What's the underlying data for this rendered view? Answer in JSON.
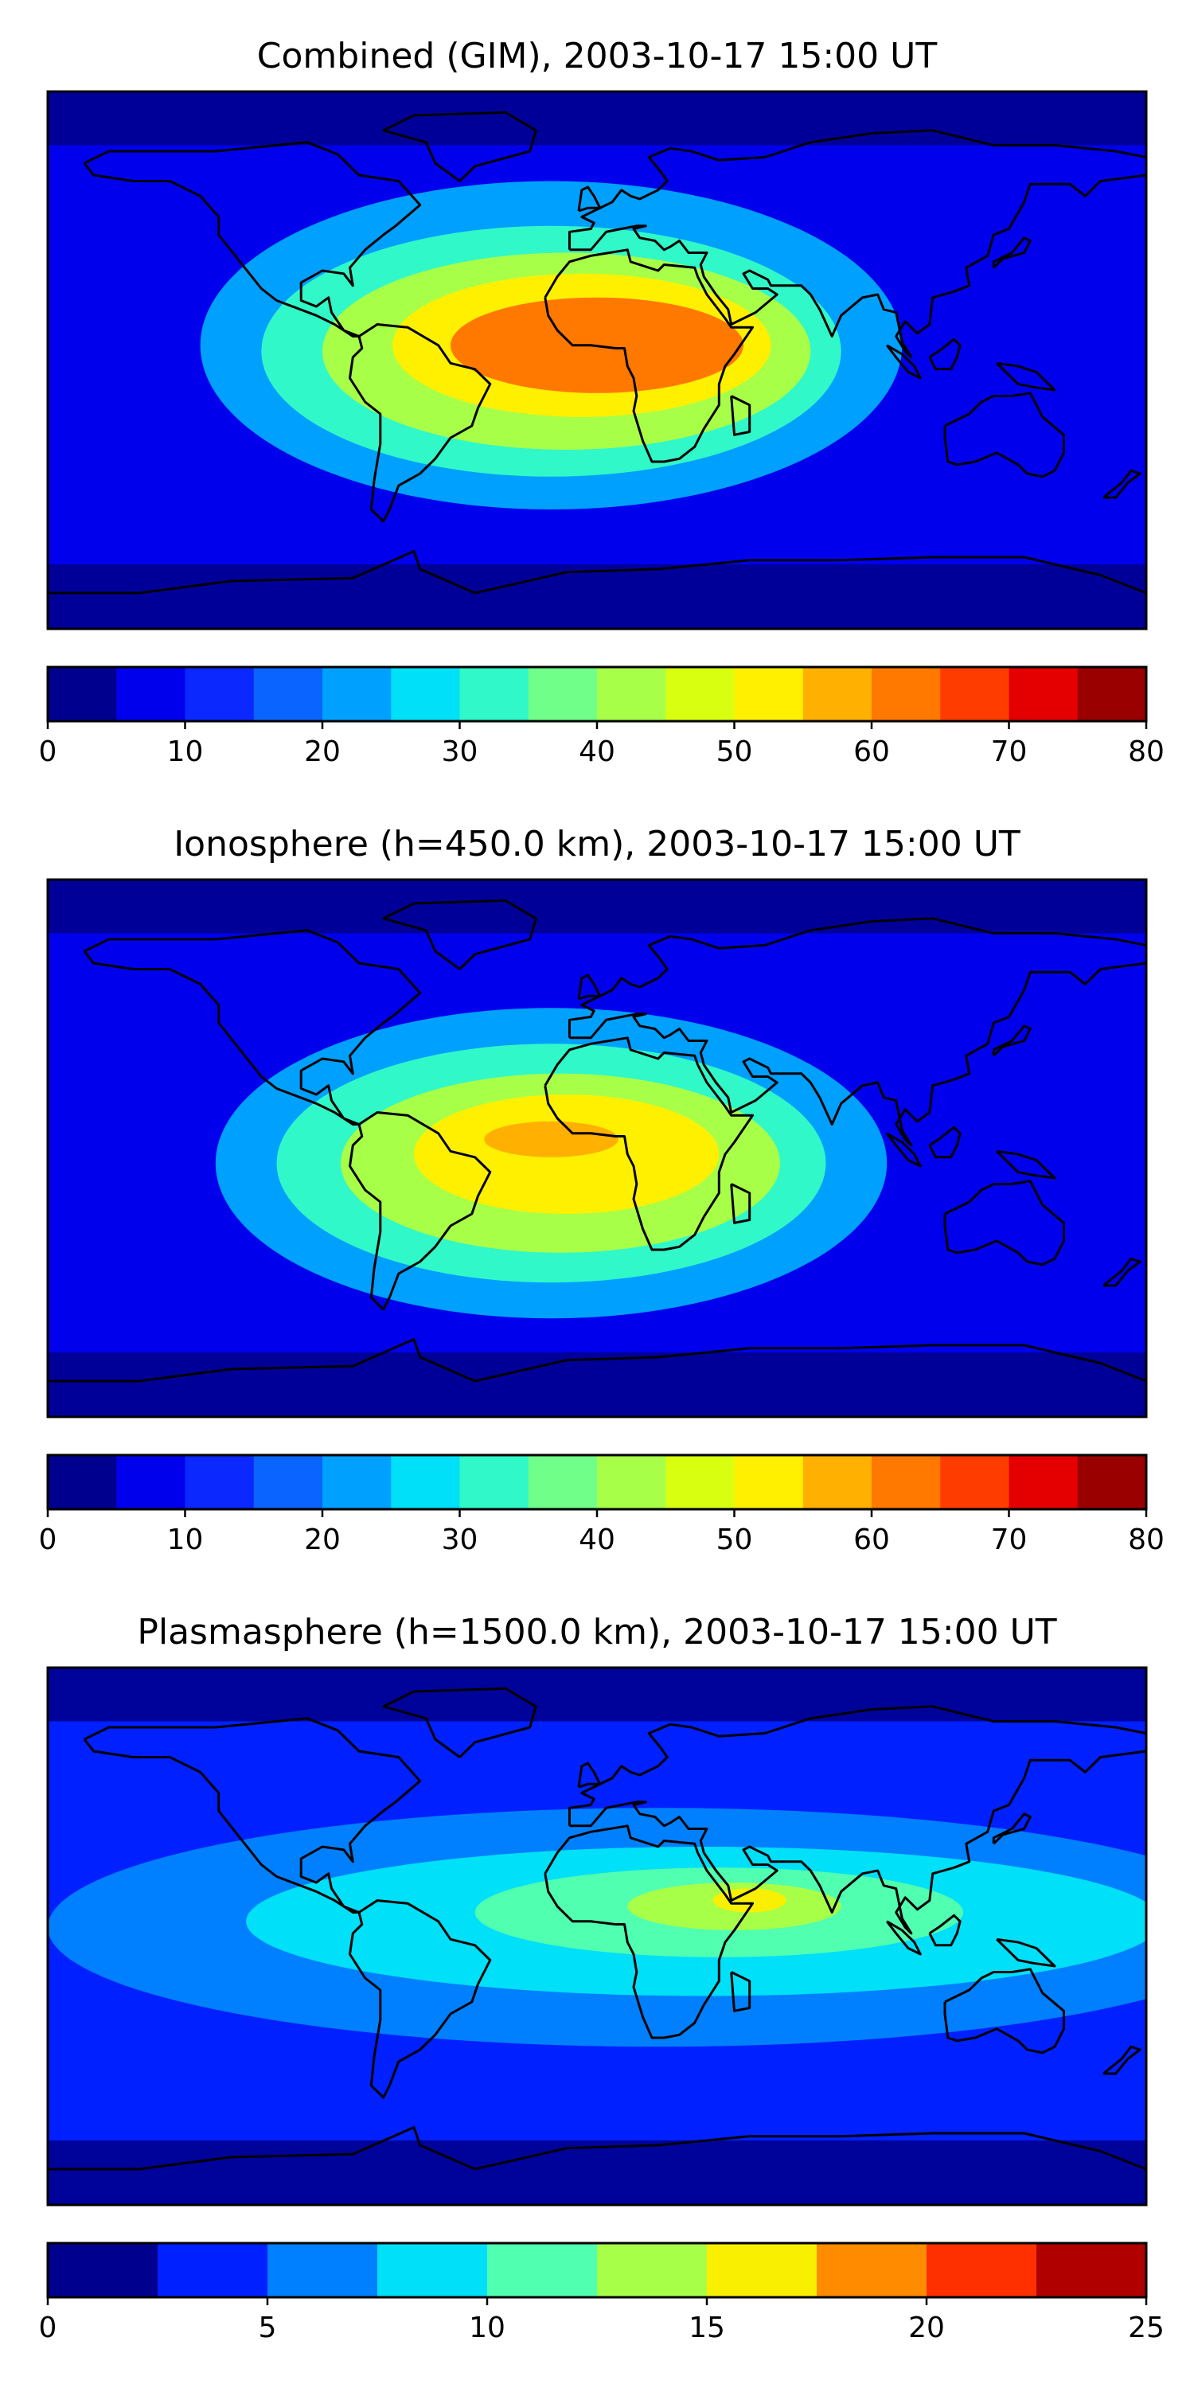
{
  "chart_data": [
    {
      "type": "heatmap",
      "title": "Combined (GIM), 2003-10-17 15:00 UT",
      "colorbar": {
        "ticks": [
          "0",
          "10",
          "20",
          "30",
          "40",
          "50",
          "60",
          "70",
          "80"
        ],
        "min": 0,
        "max": 80,
        "step": 5
      },
      "blobs": [
        {
          "lon": -15,
          "lat": 5,
          "rx": 115,
          "ry": 55,
          "value": 20
        },
        {
          "lon": -15,
          "lat": 3,
          "rx": 95,
          "ry": 42,
          "value": 30
        },
        {
          "lon": -10,
          "lat": 3,
          "rx": 80,
          "ry": 33,
          "value": 40
        },
        {
          "lon": -5,
          "lat": 5,
          "rx": 62,
          "ry": 24,
          "value": 50
        },
        {
          "lon": 0,
          "lat": 5,
          "rx": 48,
          "ry": 16,
          "value": 60
        }
      ]
    },
    {
      "type": "heatmap",
      "title": "Ionosphere  (h=450.0 km), 2003-10-17 15:00 UT",
      "colorbar": {
        "ticks": [
          "0",
          "10",
          "20",
          "30",
          "40",
          "50",
          "60",
          "70",
          "80"
        ],
        "min": 0,
        "max": 80,
        "step": 5
      },
      "blobs": [
        {
          "lon": -15,
          "lat": -5,
          "rx": 110,
          "ry": 52,
          "value": 20
        },
        {
          "lon": -15,
          "lat": -5,
          "rx": 90,
          "ry": 40,
          "value": 30
        },
        {
          "lon": -12,
          "lat": -5,
          "rx": 72,
          "ry": 30,
          "value": 40
        },
        {
          "lon": -10,
          "lat": -2,
          "rx": 50,
          "ry": 20,
          "value": 50
        },
        {
          "lon": -15,
          "lat": 3,
          "rx": 22,
          "ry": 6,
          "value": 55
        }
      ]
    },
    {
      "type": "heatmap",
      "title": "Plasmasphere (h=1500.0 km), 2003-10-17 15:00 UT",
      "colorbar": {
        "ticks": [
          "0",
          "5",
          "10",
          "15",
          "20",
          "25"
        ],
        "min": 0,
        "max": 25,
        "step": 2.5
      },
      "blobs": [
        {
          "lon": 20,
          "lat": 3,
          "rx": 200,
          "ry": 40,
          "value": 5
        },
        {
          "lon": 35,
          "lat": 5,
          "rx": 150,
          "ry": 25,
          "value": 7.5
        },
        {
          "lon": 40,
          "lat": 8,
          "rx": 80,
          "ry": 15,
          "value": 10
        },
        {
          "lon": 45,
          "lat": 10,
          "rx": 35,
          "ry": 8,
          "value": 12.5
        },
        {
          "lon": 50,
          "lat": 12,
          "rx": 12,
          "ry": 4,
          "value": 15
        }
      ]
    }
  ],
  "colormap": [
    "#00008f",
    "#0000ed",
    "#0a28ff",
    "#0a64ff",
    "#00a0ff",
    "#00e0f8",
    "#30f8c8",
    "#70ff88",
    "#a8ff48",
    "#d8ff10",
    "#fff000",
    "#ffb000",
    "#ff7800",
    "#ff3c00",
    "#e40000",
    "#9a0000"
  ],
  "colormap10": [
    "#00008f",
    "#0020ff",
    "#0080ff",
    "#00e0f8",
    "#50ffb0",
    "#a8ff48",
    "#f8f000",
    "#ff8c00",
    "#ff3000",
    "#b00000"
  ]
}
